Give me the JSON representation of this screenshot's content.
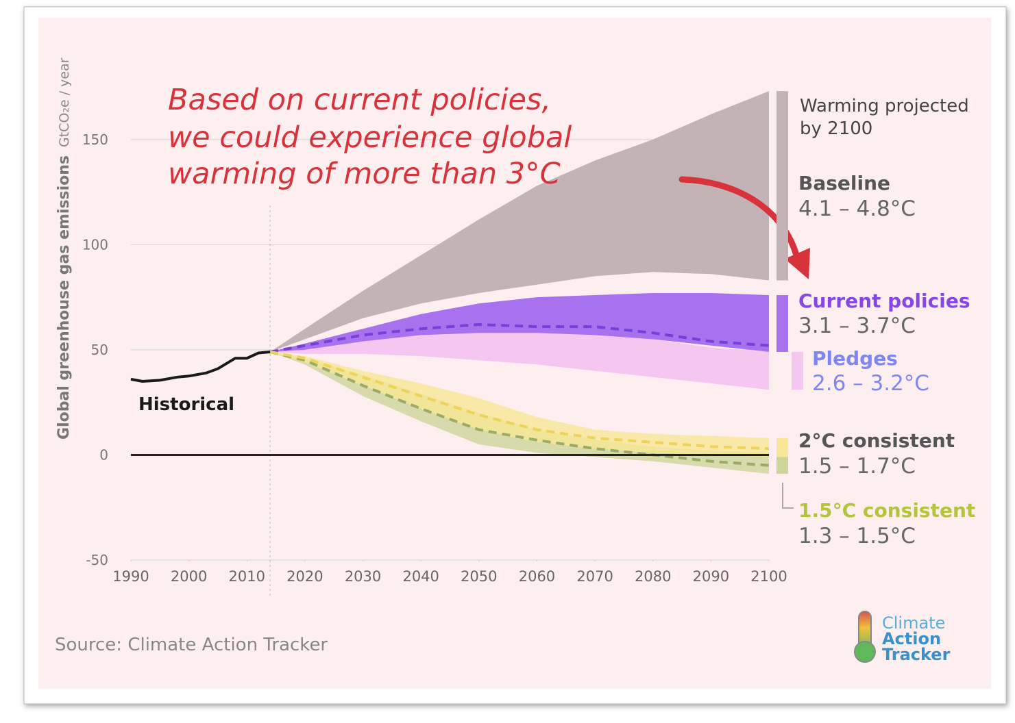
{
  "chart_data": {
    "type": "area",
    "y_label": "Global greenhouse gas emissions",
    "y_unit": "GtCO₂e / year",
    "annotation": [
      "Based on current policies,",
      "we could experience global",
      "warming of more than 3°C"
    ],
    "xlim": [
      1990,
      2100
    ],
    "xticks": [
      1990,
      2000,
      2010,
      2020,
      2030,
      2040,
      2050,
      2060,
      2070,
      2080,
      2090,
      2100
    ],
    "ylim": [
      -50,
      175
    ],
    "yticks": [
      -50,
      0,
      50,
      100,
      150
    ],
    "grid": true,
    "historical": {
      "name": "Historical",
      "color": "#1a1a1a",
      "x": [
        1990,
        1992,
        1995,
        1998,
        2000,
        2003,
        2005,
        2008,
        2010,
        2012,
        2014
      ],
      "values": [
        36,
        35,
        35.5,
        37,
        37.5,
        39,
        41,
        46,
        46,
        48.5,
        49
      ]
    },
    "x": [
      2014,
      2020,
      2030,
      2040,
      2050,
      2060,
      2070,
      2080,
      2090,
      2100
    ],
    "legend_title": [
      "Warming projected",
      "by 2100"
    ],
    "series": [
      {
        "name": "Baseline",
        "range": "4.1 – 4.8°C",
        "color": "#c3b3b6",
        "label_color": "#555555",
        "high": [
          49,
          60,
          78,
          95,
          112,
          128,
          140,
          150,
          162,
          173
        ],
        "low": [
          49,
          55,
          65,
          72,
          77,
          81,
          85,
          87,
          86,
          83
        ]
      },
      {
        "name": "Pledges",
        "range": "2.6 – 3.2°C",
        "color": "#f5c6f0",
        "label_color": "#7f86f0",
        "high": [
          49,
          50,
          54,
          58,
          60,
          60,
          58,
          55,
          51,
          49
        ],
        "low": [
          49,
          48,
          48,
          47,
          45,
          43,
          40,
          37,
          34,
          31
        ]
      },
      {
        "name": "Current policies",
        "range": "3.1 – 3.7°C",
        "color": "#a872ef",
        "label_color": "#8747e6",
        "median_color": "#7440d8",
        "high": [
          49,
          53,
          60,
          67,
          72,
          75,
          76,
          77,
          77,
          76
        ],
        "low": [
          49,
          50,
          54,
          57,
          58,
          58,
          57,
          55,
          52,
          49
        ],
        "median": [
          49,
          52,
          57,
          60,
          62,
          61,
          61,
          58,
          54,
          52
        ]
      },
      {
        "name": "1.5°C consistent",
        "range": "1.3 – 1.5°C",
        "color": "#cdd59a",
        "label_color": "#b4c43c",
        "median_color": "#9aab66",
        "high": [
          49,
          46,
          38,
          29,
          20,
          12,
          7,
          4,
          2,
          1
        ],
        "low": [
          49,
          43,
          28,
          16,
          5,
          1,
          -1,
          -3,
          -6,
          -9
        ],
        "median": [
          49,
          45,
          33,
          22,
          12,
          7,
          3,
          0,
          -3,
          -5
        ]
      },
      {
        "name": "2°C consistent",
        "range": "1.5 – 1.7°C",
        "color": "#f8e796",
        "label_color": "#555555",
        "median_color": "#eed35a",
        "high": [
          49,
          47,
          40,
          34,
          27,
          18,
          12,
          10,
          9,
          8
        ],
        "low": [
          49,
          44,
          33,
          22,
          12,
          6,
          3,
          1,
          0,
          -1
        ],
        "median": [
          49,
          46,
          37,
          28,
          19,
          12,
          8,
          6,
          4,
          3
        ]
      }
    ],
    "source": "Source: Climate Action Tracker",
    "logo": [
      "Climate",
      "Action",
      "Tracker"
    ]
  }
}
